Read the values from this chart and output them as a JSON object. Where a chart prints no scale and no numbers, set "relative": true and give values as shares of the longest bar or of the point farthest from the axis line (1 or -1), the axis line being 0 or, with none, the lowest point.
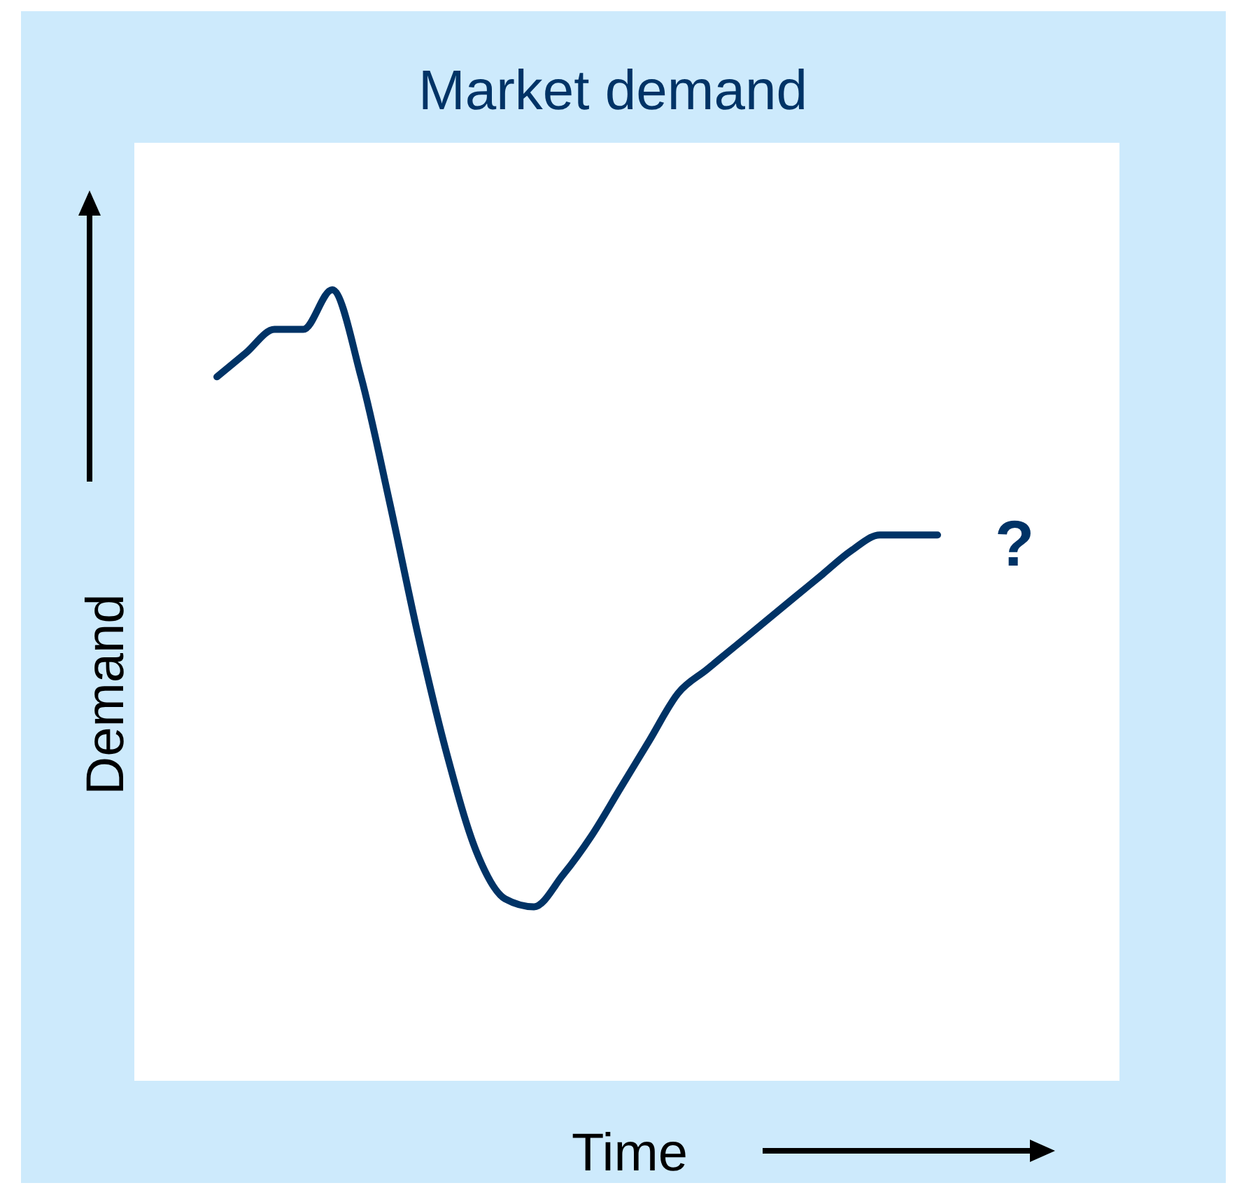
{
  "chart_data": {
    "type": "line",
    "title": "Market demand",
    "xlabel": "Time",
    "ylabel": "Demand",
    "relative": true,
    "annotations": [
      "?"
    ],
    "categories": [
      null,
      null,
      null,
      null,
      null,
      null,
      null,
      null,
      null,
      null,
      null,
      null,
      null,
      null,
      null,
      null,
      null,
      null,
      null,
      null,
      null,
      null,
      null,
      null,
      null,
      null
    ],
    "series": [
      {
        "color": "#003366",
        "values": [
          0.89,
          0.92,
          0.95,
          0.95,
          1,
          0.89,
          0.73,
          0.56,
          0.41,
          0.29,
          0.23,
          0.22,
          0.26,
          0.31,
          0.37,
          0.43,
          0.49,
          0.52,
          0.55,
          0.58,
          0.61,
          0.64,
          0.67,
          0.69,
          0.69,
          0.69
        ]
      }
    ]
  }
}
